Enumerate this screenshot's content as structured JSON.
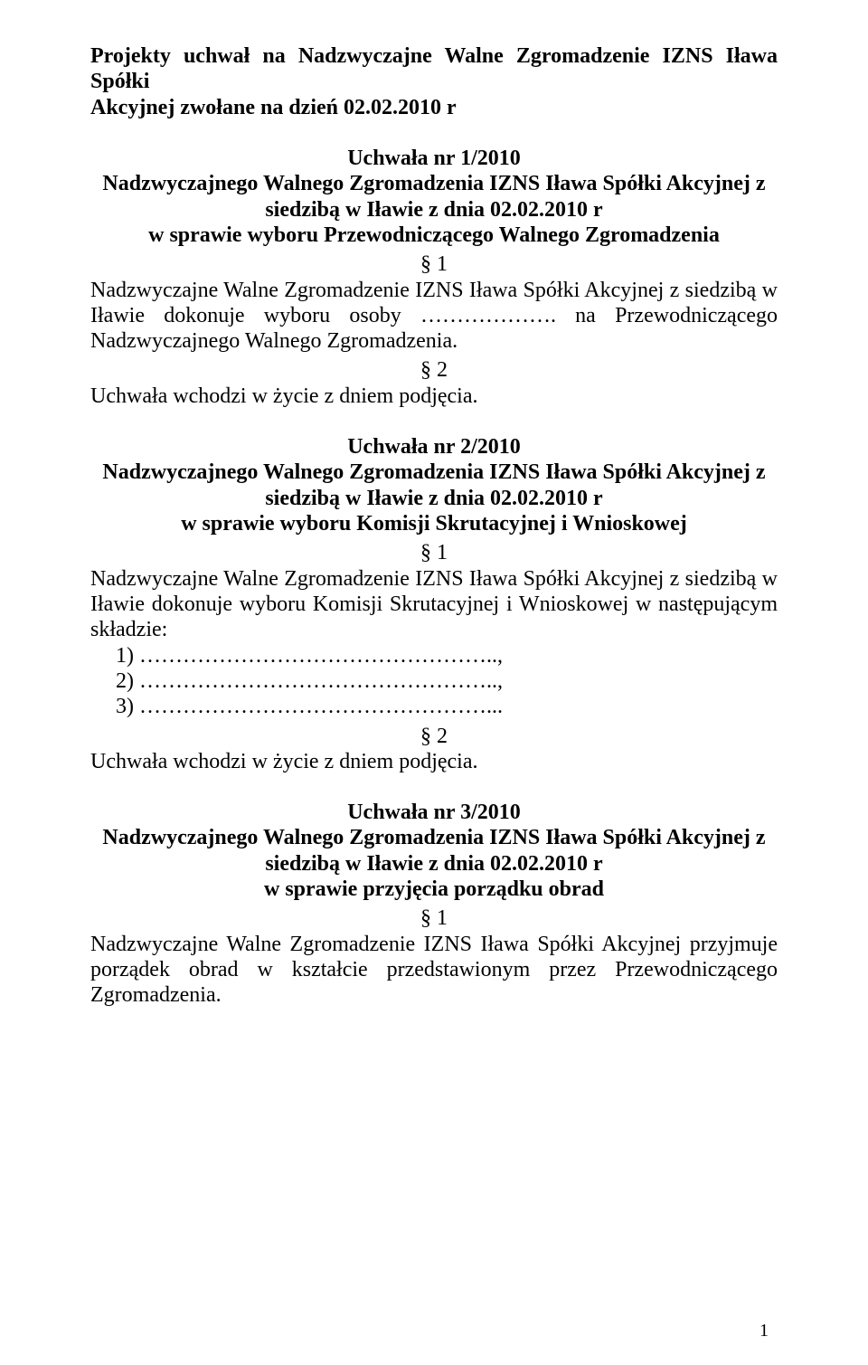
{
  "doc": {
    "header_line1": "Projekty uchwał na Nadzwyczajne Walne Zgromadzenie IZNS Iława Spółki",
    "header_line2": "Akcyjnej zwołane na dzień 02.02.2010 r",
    "u1_title": "Uchwała nr 1/2010",
    "u1_sub1": "Nadzwyczajnego Walnego Zgromadzenia IZNS Iława Spółki Akcyjnej z",
    "u1_sub2": "siedzibą w Iławie z dnia 02.02.2010 r",
    "u1_sub3": "w sprawie wyboru Przewodniczącego Walnego Zgromadzenia",
    "u1_p1": "§ 1",
    "u1_body": "Nadzwyczajne Walne Zgromadzenie IZNS Iława Spółki Akcyjnej z siedzibą w Iławie dokonuje wyboru osoby ………………. na Przewodniczącego Nadzwyczajnego Walnego Zgromadzenia.",
    "u1_p2": "§ 2",
    "u1_effect": "Uchwała wchodzi w życie z dniem podjęcia.",
    "u2_title": "Uchwała nr 2/2010",
    "u2_sub1": "Nadzwyczajnego Walnego Zgromadzenia IZNS Iława Spółki Akcyjnej z",
    "u2_sub2": "siedzibą w Iławie z dnia 02.02.2010 r",
    "u2_sub3": "w sprawie wyboru Komisji Skrutacyjnej i Wnioskowej",
    "u2_p1": "§ 1",
    "u2_body": "Nadzwyczajne Walne Zgromadzenie IZNS Iława Spółki Akcyjnej z siedzibą w Iławie dokonuje wyboru Komisji Skrutacyjnej i Wnioskowej w następującym składzie:",
    "u2_li1": "1) …………………………………………..,",
    "u2_li2": "2) …………………………………………..,",
    "u2_li3": "3) …………………………………………...",
    "u2_p2": "§ 2",
    "u2_effect": "Uchwała wchodzi w życie z dniem podjęcia.",
    "u3_title": "Uchwała nr 3/2010",
    "u3_sub1": "Nadzwyczajnego Walnego Zgromadzenia IZNS Iława Spółki Akcyjnej z",
    "u3_sub2": "siedzibą w Iławie z dnia 02.02.2010 r",
    "u3_sub3": "w sprawie przyjęcia porządku obrad",
    "u3_p1": "§ 1",
    "u3_body": "Nadzwyczajne Walne Zgromadzenie IZNS Iława Spółki Akcyjnej przyjmuje porządek obrad w kształcie przedstawionym przez Przewodniczącego Zgromadzenia.",
    "page_number": "1"
  }
}
